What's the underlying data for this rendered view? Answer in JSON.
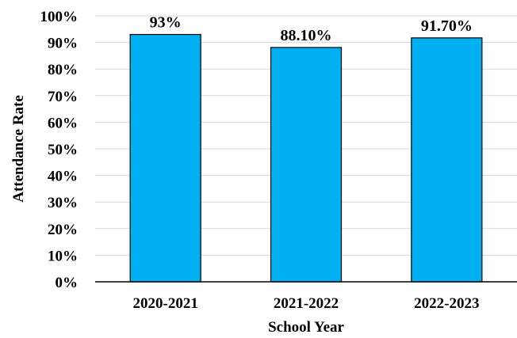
{
  "chart_data": {
    "type": "bar",
    "categories": [
      "2020-2021",
      "2021-2022",
      "2022-2023"
    ],
    "values": [
      93,
      88.1,
      91.7
    ],
    "data_labels": [
      "93%",
      "88.10%",
      "91.70%"
    ],
    "title": "",
    "xlabel": "School Year",
    "ylabel": "Attendance Rate",
    "ylim": [
      0,
      100
    ],
    "y_ticks": [
      0,
      10,
      20,
      30,
      40,
      50,
      60,
      70,
      80,
      90,
      100
    ],
    "y_tick_labels": [
      "0%",
      "10%",
      "20%",
      "30%",
      "40%",
      "50%",
      "60%",
      "70%",
      "80%",
      "90%",
      "100%"
    ],
    "grid": true,
    "legend": "none",
    "bar_color": "#00b0f0"
  }
}
